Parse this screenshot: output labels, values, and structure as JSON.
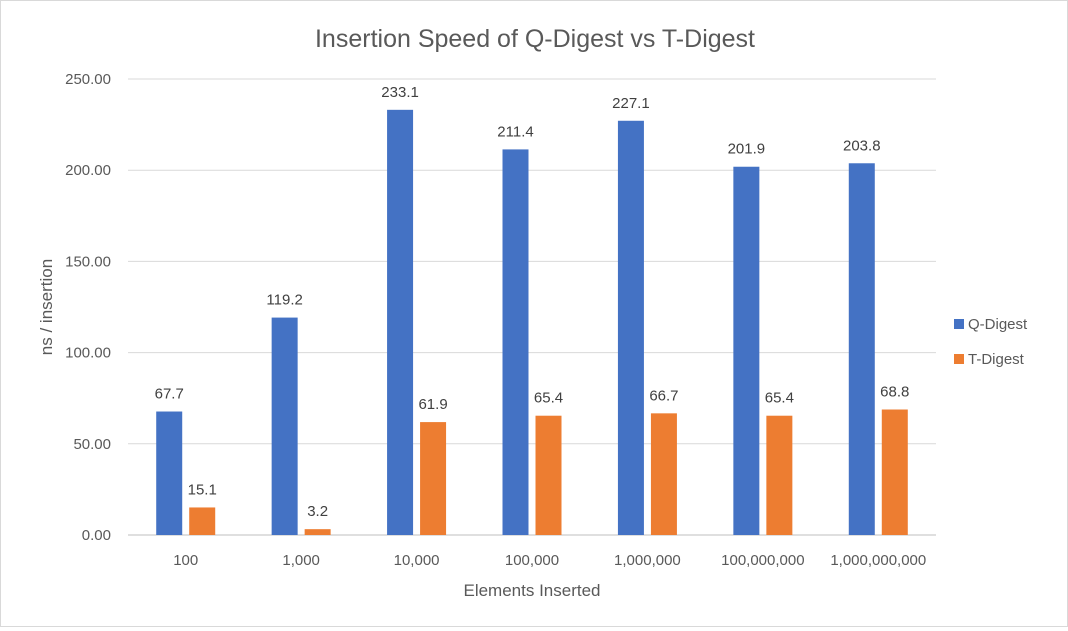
{
  "chart_data": {
    "type": "bar",
    "title": "Insertion Speed of Q-Digest vs T-Digest",
    "xlabel": "Elements Inserted",
    "ylabel": "ns / insertion",
    "categories": [
      "100",
      "1,000",
      "10,000",
      "100,000",
      "1,000,000",
      "100,000,000",
      "1,000,000,000"
    ],
    "series": [
      {
        "name": "Q-Digest",
        "color": "#4472C4",
        "values": [
          67.7,
          119.2,
          233.1,
          211.4,
          227.1,
          201.9,
          203.8
        ],
        "labels": [
          "67.7",
          "119.2",
          "233.1",
          "211.4",
          "227.1",
          "201.9",
          "203.8"
        ]
      },
      {
        "name": "T-Digest",
        "color": "#ED7D31",
        "values": [
          15.1,
          3.2,
          61.9,
          65.4,
          66.7,
          65.4,
          68.8
        ],
        "labels": [
          "15.1",
          "3.2",
          "61.9",
          "65.4",
          "66.7",
          "65.4",
          "68.8"
        ]
      }
    ],
    "ylim": [
      0,
      250
    ],
    "yticks": [
      "0.00",
      "50.00",
      "100.00",
      "150.00",
      "200.00",
      "250.00"
    ],
    "ytick_values": [
      0,
      50,
      100,
      150,
      200,
      250
    ],
    "grid": true,
    "legend": "right"
  }
}
